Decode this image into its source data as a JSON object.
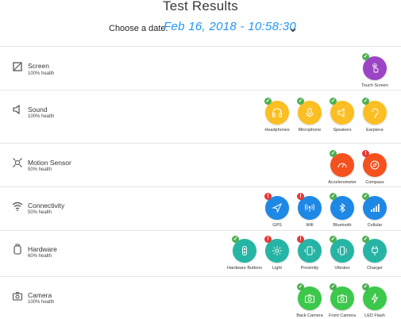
{
  "title": "Test Results",
  "date_picker": {
    "label": "Choose a date:",
    "value": "Feb 16, 2018 - 10:58:30"
  },
  "colors": {
    "accent": "#2196f3",
    "purple": "#9c45c4",
    "yellow": "#fbbf24",
    "red": "#f4511e",
    "blue": "#1e88e5",
    "teal": "#26b5a5",
    "green": "#3cc84a",
    "ok": "#4caf50",
    "fail": "#e53935"
  },
  "sections": [
    {
      "name": "Screen",
      "health": "100% health",
      "icon": "screen-icon",
      "tests": [
        {
          "label": "Touch Screen",
          "status": "ok",
          "icon": "touch-icon"
        }
      ]
    },
    {
      "name": "Sound",
      "health": "100% health",
      "icon": "speaker-icon",
      "tests": [
        {
          "label": "Headphones",
          "status": "ok",
          "icon": "headphones-icon"
        },
        {
          "label": "Microphone",
          "status": "ok",
          "icon": "microphone-icon"
        },
        {
          "label": "Speakers",
          "status": "ok",
          "icon": "speaker-icon"
        },
        {
          "label": "Earpiece",
          "status": "ok",
          "icon": "ear-icon"
        }
      ]
    },
    {
      "name": "Motion Sensor",
      "health": "50% health",
      "icon": "motion-sensor-icon",
      "tests": [
        {
          "label": "Accelerometer",
          "status": "ok",
          "icon": "gauge-icon"
        },
        {
          "label": "Compass",
          "status": "fail",
          "icon": "compass-icon"
        }
      ]
    },
    {
      "name": "Connectivity",
      "health": "50% health",
      "icon": "wifi-icon",
      "tests": [
        {
          "label": "GPS",
          "status": "fail",
          "icon": "navigation-icon"
        },
        {
          "label": "Wifi",
          "status": "fail",
          "icon": "antenna-icon"
        },
        {
          "label": "Bluetooth",
          "status": "ok",
          "icon": "bluetooth-icon"
        },
        {
          "label": "Cellular",
          "status": "ok",
          "icon": "signal-bars-icon"
        }
      ]
    },
    {
      "name": "Hardware",
      "health": "60% health",
      "icon": "hardware-icon",
      "tests": [
        {
          "label": "Hardware Buttons",
          "status": "ok",
          "icon": "buttons-icon"
        },
        {
          "label": "Light",
          "status": "fail",
          "icon": "light-icon"
        },
        {
          "label": "Proximity",
          "status": "fail",
          "icon": "proximity-icon"
        },
        {
          "label": "Vibrator",
          "status": "ok",
          "icon": "vibrator-icon"
        },
        {
          "label": "Charger",
          "status": "ok",
          "icon": "charger-icon"
        }
      ]
    },
    {
      "name": "Camera",
      "health": "100% health",
      "icon": "camera-icon",
      "tests": [
        {
          "label": "Back Camera",
          "status": "ok",
          "icon": "camera-icon"
        },
        {
          "label": "Front Camera",
          "status": "ok",
          "icon": "camera-icon"
        },
        {
          "label": "LED Flash",
          "status": "ok",
          "icon": "flash-icon"
        }
      ]
    }
  ]
}
